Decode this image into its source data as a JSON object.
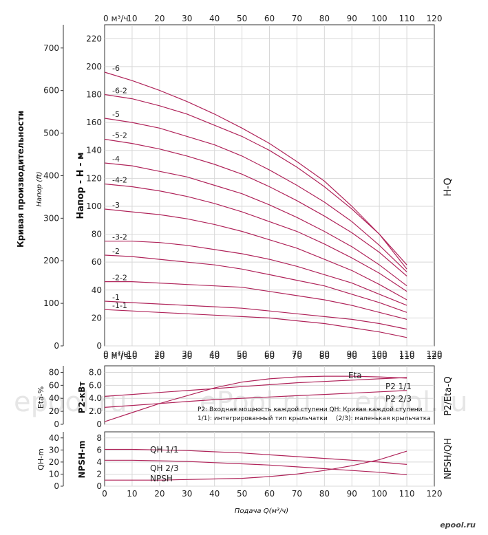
{
  "watermarks": [
    "epool.ru",
    "ePool.ru",
    "epool.ru"
  ],
  "brand": "epool.ru",
  "left_title": "Кривая производительности",
  "chart_data": [
    {
      "type": "line",
      "id": "hq",
      "side_label": "H-Q",
      "ylabel": "Напор - H - м",
      "ylabel_ft": "Напор (ft)",
      "x_unit_label": "м³/ч",
      "x_ticks": [
        0,
        10,
        20,
        30,
        40,
        50,
        60,
        70,
        80,
        90,
        100,
        110,
        120
      ],
      "xlim": [
        0,
        120
      ],
      "ylim": [
        0,
        230
      ],
      "y_ticks": [
        0,
        20,
        40,
        60,
        80,
        100,
        120,
        140,
        160,
        180,
        200,
        220
      ],
      "ft_ticks": [
        0,
        100,
        200,
        300,
        400,
        500,
        600,
        700
      ],
      "x": [
        0,
        10,
        20,
        30,
        40,
        50,
        60,
        70,
        80,
        90,
        100,
        110
      ],
      "series": [
        {
          "name": "-6",
          "values": [
            196,
            190,
            183,
            175,
            166,
            156,
            145,
            132,
            118,
            100,
            80,
            55
          ]
        },
        {
          "name": "-6-2",
          "values": [
            180,
            177,
            172,
            166,
            158,
            150,
            140,
            128,
            114,
            98,
            80,
            58
          ]
        },
        {
          "name": "-5",
          "values": [
            163,
            160,
            156,
            150,
            144,
            136,
            126,
            115,
            103,
            89,
            72,
            53
          ]
        },
        {
          "name": "-5-2",
          "values": [
            148,
            145,
            141,
            136,
            130,
            123,
            114,
            104,
            93,
            81,
            67,
            50
          ]
        },
        {
          "name": "-4",
          "values": [
            131,
            129,
            125,
            121,
            115,
            109,
            101,
            92,
            82,
            71,
            58,
            43
          ]
        },
        {
          "name": "-4-2",
          "values": [
            116,
            114,
            111,
            107,
            102,
            96,
            89,
            82,
            73,
            63,
            52,
            39
          ]
        },
        {
          "name": "-3",
          "values": [
            98,
            96,
            94,
            91,
            87,
            82,
            76,
            70,
            62,
            54,
            44,
            33
          ]
        },
        {
          "name": "-3-2",
          "values": [
            75,
            75,
            74,
            72,
            69,
            66,
            62,
            57,
            51,
            45,
            37,
            29
          ]
        },
        {
          "name": "-2",
          "values": [
            65,
            64,
            62,
            60,
            58,
            55,
            51,
            47,
            43,
            37,
            31,
            24
          ]
        },
        {
          "name": "-2-2",
          "values": [
            46,
            46,
            45,
            44,
            43,
            42,
            39,
            36,
            33,
            29,
            24,
            19
          ]
        },
        {
          "name": "-1",
          "values": [
            32,
            31,
            30,
            29,
            28,
            27,
            25,
            23,
            21,
            19,
            16,
            12
          ]
        },
        {
          "name": "-1-1",
          "values": [
            26,
            25,
            24,
            23,
            22,
            21,
            20,
            18,
            16,
            13,
            10,
            6
          ]
        }
      ]
    },
    {
      "type": "line",
      "id": "p2eta",
      "side_label": "P2/Eta-Q",
      "ylabel": "P2-кВт",
      "ylabel2": "Eta-%",
      "ylim": [
        0,
        9
      ],
      "y_ticks": [
        0,
        2.0,
        4.0,
        6.0,
        8.0
      ],
      "y_tick_labels": [
        "0",
        "2.0",
        "4.0",
        "6.0",
        "8.0"
      ],
      "eta_ticks": [
        0,
        20,
        40,
        60,
        80
      ],
      "xlim": [
        0,
        120
      ],
      "x_ticks": [
        0,
        10,
        20,
        30,
        40,
        50,
        60,
        70,
        80,
        90,
        100,
        110,
        120
      ],
      "x_unit_label": "м³/ч",
      "notes": [
        "P2: Входная мощность каждой ступени QH: Кривая каждой ступени",
        "1/1): интегрированный тип крыльчатки",
        "(2/3): маленькая крыльчатка"
      ],
      "series": [
        {
          "name": "Eta",
          "x": [
            0,
            10,
            20,
            30,
            40,
            50,
            60,
            70,
            80,
            90,
            100,
            110
          ],
          "values": [
            0.4,
            1.8,
            3.2,
            4.4,
            5.6,
            6.5,
            7.0,
            7.3,
            7.4,
            7.4,
            7.3,
            7.1
          ]
        },
        {
          "name": "P2 1/1",
          "x": [
            0,
            10,
            20,
            30,
            40,
            50,
            60,
            70,
            80,
            90,
            100,
            110
          ],
          "values": [
            4.3,
            4.6,
            4.9,
            5.2,
            5.5,
            5.8,
            6.1,
            6.4,
            6.6,
            6.8,
            7.0,
            7.2
          ]
        },
        {
          "name": "P2 2/3",
          "x": [
            0,
            10,
            20,
            30,
            40,
            50,
            60,
            70,
            80,
            90,
            100,
            110
          ],
          "values": [
            2.6,
            2.9,
            3.2,
            3.5,
            3.8,
            4.0,
            4.2,
            4.4,
            4.6,
            4.8,
            5.0,
            5.2
          ]
        }
      ]
    },
    {
      "type": "line",
      "id": "npsh",
      "side_label": "NPSH/QH",
      "ylabel": "NPSH-m",
      "ylabel2": "QH-m",
      "ylim": [
        0,
        9
      ],
      "y_ticks": [
        0,
        2,
        4,
        6,
        8
      ],
      "y2_ticks": [
        0,
        10,
        20,
        30,
        40
      ],
      "xlim": [
        0,
        120
      ],
      "x_ticks": [
        0,
        10,
        20,
        30,
        40,
        50,
        60,
        70,
        80,
        90,
        100,
        110,
        120
      ],
      "xlabel": "Подача Q(м³/ч)",
      "series": [
        {
          "name": "QH 1/1",
          "x": [
            0,
            10,
            20,
            30,
            40,
            50,
            60,
            70,
            80,
            90,
            100,
            110
          ],
          "values": [
            6.1,
            6.1,
            6.0,
            5.9,
            5.7,
            5.5,
            5.2,
            4.9,
            4.6,
            4.3,
            4.0,
            3.6
          ]
        },
        {
          "name": "QH 2/3",
          "x": [
            0,
            10,
            20,
            30,
            40,
            50,
            60,
            70,
            80,
            90,
            100,
            110
          ],
          "values": [
            4.3,
            4.3,
            4.2,
            4.1,
            3.9,
            3.7,
            3.5,
            3.2,
            2.9,
            2.6,
            2.3,
            1.9
          ]
        },
        {
          "name": "NPSH",
          "x": [
            0,
            10,
            20,
            30,
            40,
            50,
            60,
            70,
            80,
            90,
            100,
            110
          ],
          "values": [
            1.0,
            1.0,
            1.0,
            1.1,
            1.2,
            1.3,
            1.6,
            2.0,
            2.6,
            3.4,
            4.4,
            5.8
          ]
        }
      ]
    }
  ]
}
